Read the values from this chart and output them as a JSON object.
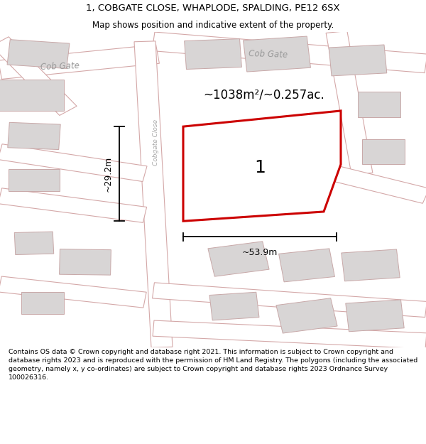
{
  "title": "1, COBGATE CLOSE, WHAPLODE, SPALDING, PE12 6SX",
  "subtitle": "Map shows position and indicative extent of the property.",
  "footer": "Contains OS data © Crown copyright and database right 2021. This information is subject to Crown copyright and database rights 2023 and is reproduced with the permission of HM Land Registry. The polygons (including the associated geometry, namely x, y co-ordinates) are subject to Crown copyright and database rights 2023 Ordnance Survey 100026316.",
  "bg_color": "#ffffff",
  "map_bg": "#f2eeee",
  "road_fill": "#ffffff",
  "road_edge": "#d4a8a8",
  "bld_fill": "#d8d5d5",
  "bld_edge": "#c8a8a8",
  "prop_fill": "#ffffff",
  "prop_edge": "#cc0000",
  "area_text": "~1038m²/~0.257ac.",
  "dim_h": "~29.2m",
  "dim_w": "~53.9m",
  "label": "1",
  "lbl_cob_gate_left": "Cob Gate",
  "lbl_cob_gate_top": "Cob Gate",
  "lbl_cobgate_close": "Cobgate Close",
  "title_fontsize": 9.5,
  "subtitle_fontsize": 8.5,
  "footer_fontsize": 6.8
}
